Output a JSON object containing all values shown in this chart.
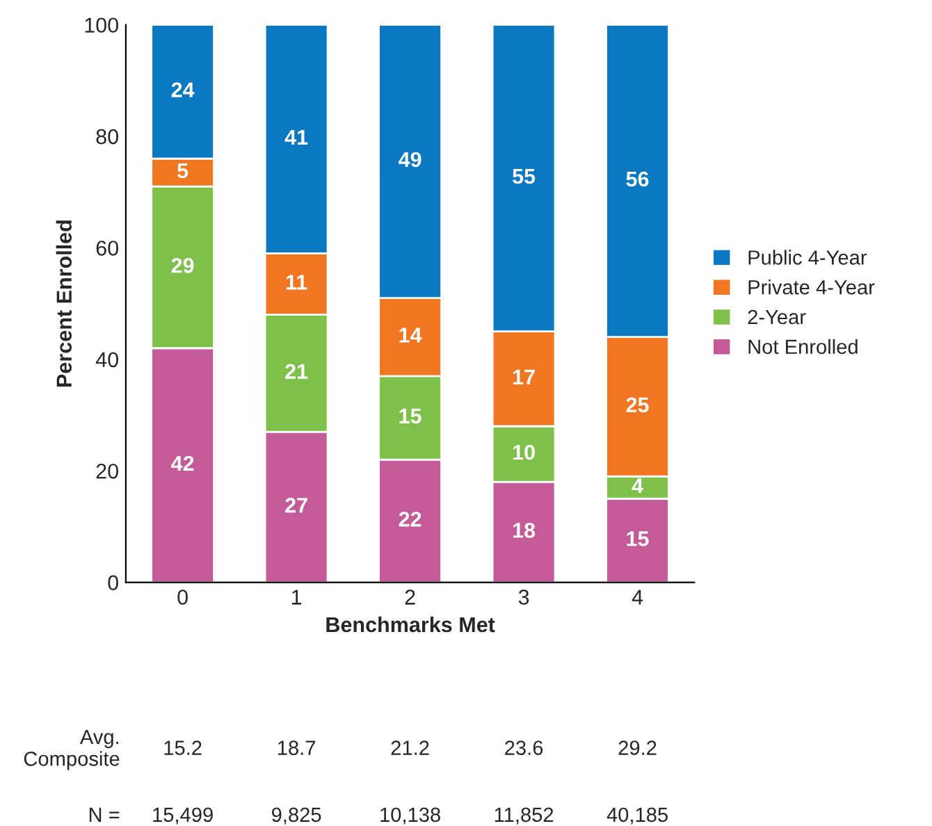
{
  "chart_data": {
    "type": "bar",
    "stacked": true,
    "xlabel": "Benchmarks Met",
    "ylabel": "Percent Enrolled",
    "categories": [
      "0",
      "1",
      "2",
      "3",
      "4"
    ],
    "series": [
      {
        "name": "Not Enrolled",
        "color": "#c45a97",
        "values": [
          42,
          27,
          22,
          18,
          15
        ]
      },
      {
        "name": "2-Year",
        "color": "#7ec04a",
        "values": [
          29,
          21,
          15,
          10,
          4
        ]
      },
      {
        "name": "Private 4-Year",
        "color": "#f07622",
        "values": [
          5,
          11,
          14,
          17,
          25
        ]
      },
      {
        "name": "Public 4-Year",
        "color": "#0b78c2",
        "values": [
          24,
          41,
          49,
          55,
          56
        ]
      }
    ],
    "ylim": [
      0,
      100
    ],
    "yticks": [
      0,
      20,
      40,
      60,
      80,
      100
    ],
    "data_labels": true,
    "legend": "right",
    "grid": false,
    "annotations": [
      "Avg. Composite",
      "15.2",
      "18.7",
      "21.2",
      "23.6",
      "29.2",
      "N =",
      "15,499",
      "9,825",
      "10,138",
      "11,852",
      "40,185"
    ]
  }
}
